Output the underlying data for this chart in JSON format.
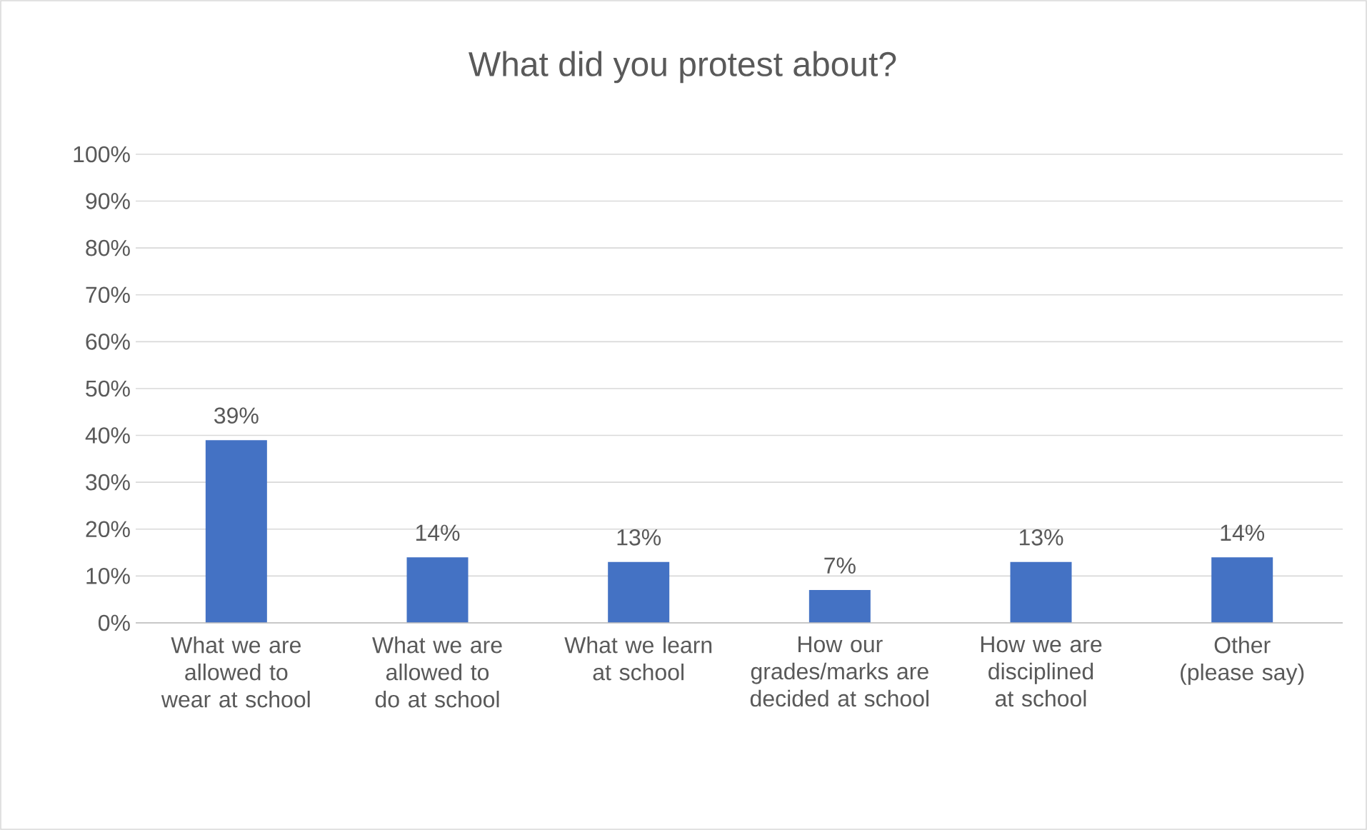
{
  "chart_data": {
    "type": "bar",
    "title": "What did you protest about?",
    "categories": [
      "What we are allowed to wear at school",
      "What we are allowed to do at school",
      "What we learn at school",
      "How our grades/marks are decided at school",
      "How we are disciplined at school",
      "Other (please say)"
    ],
    "values": [
      39,
      14,
      13,
      7,
      13,
      14
    ],
    "value_labels": [
      "39%",
      "14%",
      "13%",
      "7%",
      "13%",
      "14%"
    ],
    "color": "#4472c4",
    "ylim": [
      0,
      100
    ],
    "yticks": [
      {
        "value": 0,
        "label": "0%"
      },
      {
        "value": 10,
        "label": "10%"
      },
      {
        "value": 20,
        "label": "20%"
      },
      {
        "value": 30,
        "label": "30%"
      },
      {
        "value": 40,
        "label": "40%"
      },
      {
        "value": 50,
        "label": "50%"
      },
      {
        "value": 60,
        "label": "60%"
      },
      {
        "value": 70,
        "label": "70%"
      },
      {
        "value": 80,
        "label": "80%"
      },
      {
        "value": 90,
        "label": "90%"
      },
      {
        "value": 100,
        "label": "100%"
      }
    ],
    "grid": "y"
  }
}
